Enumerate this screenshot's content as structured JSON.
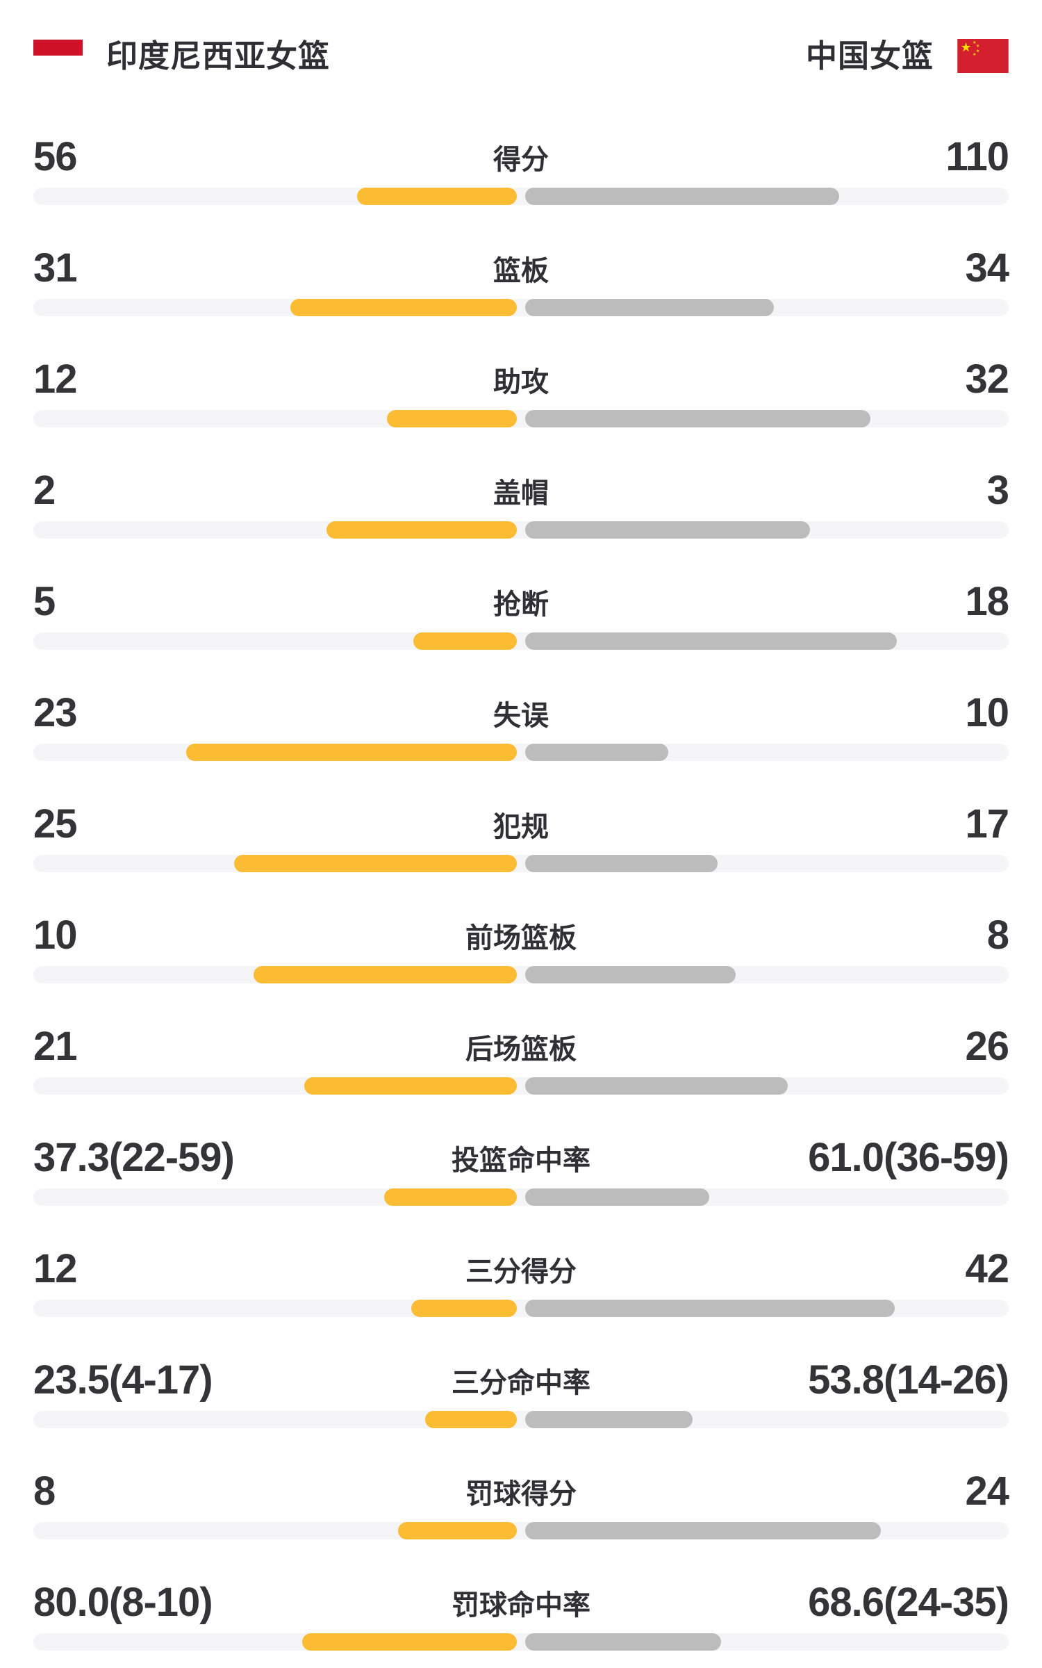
{
  "header": {
    "left_team": "印度尼西亚女篮",
    "right_team": "中国女篮",
    "left_flag": "indonesia-flag",
    "right_flag": "china-flag"
  },
  "colors": {
    "left_bar": "#FBBC34",
    "right_bar": "#BCBCBC",
    "track": "#F5F5F7",
    "text": "#333338",
    "indonesia_flag_red": "#CE1126",
    "china_flag_red": "#D4202E",
    "china_flag_star": "#FFDE00"
  },
  "rows": [
    {
      "label": "得分",
      "left": "56",
      "right": "110",
      "left_pct": 16.4,
      "right_pct": 32.2
    },
    {
      "label": "篮板",
      "left": "31",
      "right": "34",
      "left_pct": 23.2,
      "right_pct": 25.5
    },
    {
      "label": "助攻",
      "left": "12",
      "right": "32",
      "left_pct": 13.3,
      "right_pct": 35.4
    },
    {
      "label": "盖帽",
      "left": "2",
      "right": "3",
      "left_pct": 19.5,
      "right_pct": 29.2
    },
    {
      "label": "抢断",
      "left": "5",
      "right": "18",
      "left_pct": 10.6,
      "right_pct": 38.1
    },
    {
      "label": "失误",
      "left": "23",
      "right": "10",
      "left_pct": 33.9,
      "right_pct": 14.7
    },
    {
      "label": "犯规",
      "left": "25",
      "right": "17",
      "left_pct": 29.0,
      "right_pct": 19.7
    },
    {
      "label": "前场篮板",
      "left": "10",
      "right": "8",
      "left_pct": 27.0,
      "right_pct": 21.6
    },
    {
      "label": "后场篮板",
      "left": "21",
      "right": "26",
      "left_pct": 21.8,
      "right_pct": 26.9
    },
    {
      "label": "投篮命中率",
      "left": "37.3(22-59)",
      "right": "61.0(36-59)",
      "left_pct": 13.6,
      "right_pct": 18.9
    },
    {
      "label": "三分得分",
      "left": "12",
      "right": "42",
      "left_pct": 10.8,
      "right_pct": 37.9
    },
    {
      "label": "三分命中率",
      "left": "23.5(4-17)",
      "right": "53.8(14-26)",
      "left_pct": 9.4,
      "right_pct": 17.2
    },
    {
      "label": "罚球得分",
      "left": "8",
      "right": "24",
      "left_pct": 12.2,
      "right_pct": 36.5
    },
    {
      "label": "罚球命中率",
      "left": "80.0(8-10)",
      "right": "68.6(24-35)",
      "left_pct": 22.0,
      "right_pct": 20.1
    }
  ],
  "chart_data": {
    "type": "bar",
    "subtype": "diverging head-to-head team comparison",
    "title": "",
    "legend_position": "top",
    "grid": false,
    "teams": [
      "印度尼西亚女篮",
      "中国女篮"
    ],
    "categories": [
      "得分",
      "篮板",
      "助攻",
      "盖帽",
      "抢断",
      "失误",
      "犯规",
      "前场篮板",
      "后场篮板",
      "投篮命中率",
      "三分得分",
      "三分命中率",
      "罚球得分",
      "罚球命中率"
    ],
    "series": [
      {
        "name": "印度尼西亚女篮",
        "values": [
          "56",
          "31",
          "12",
          "2",
          "5",
          "23",
          "25",
          "10",
          "21",
          "37.3(22-59)",
          "12",
          "23.5(4-17)",
          "8",
          "80.0(8-10)"
        ]
      },
      {
        "name": "中国女篮",
        "values": [
          "110",
          "34",
          "32",
          "3",
          "18",
          "10",
          "17",
          "8",
          "26",
          "61.0(36-59)",
          "42",
          "53.8(14-26)",
          "24",
          "68.6(24-35)"
        ]
      }
    ]
  }
}
